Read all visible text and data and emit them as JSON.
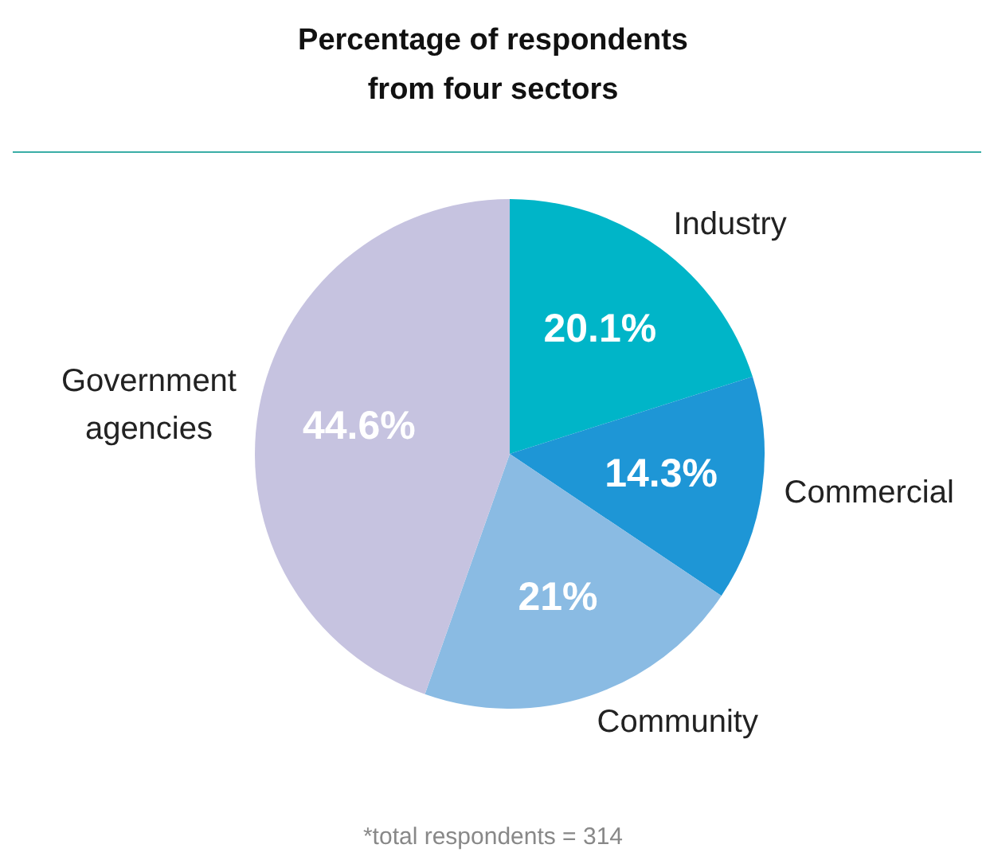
{
  "chart_data": {
    "type": "pie",
    "title": "Percentage of respondents from four sectors",
    "categories": [
      "Industry",
      "Commercial",
      "Community",
      "Government agencies"
    ],
    "values": [
      20.1,
      14.3,
      21,
      44.6
    ],
    "colors": [
      "#00b5c8",
      "#1e96d6",
      "#8abbe3",
      "#c6c3e0"
    ],
    "value_labels": [
      "20.1%",
      "14.3%",
      "21%",
      "44.6%"
    ],
    "legend": false,
    "annotations": [
      "*total respondents = 314"
    ]
  }
}
